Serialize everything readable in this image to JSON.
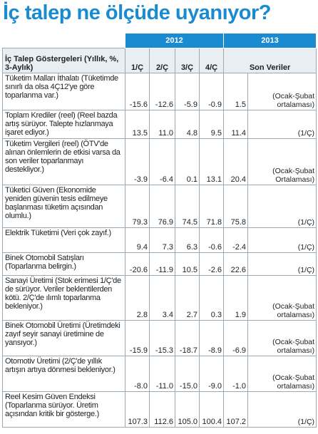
{
  "title": "İç talep ne ölçüde uyanıyor?",
  "table": {
    "years": [
      "2012",
      "2013"
    ],
    "header": [
      "İç Talep Göstergeleri (Yıllık, %, 3-Aylık)",
      "1/Ç",
      "2/Ç",
      "3/Ç",
      "4/Ç",
      "Son Veriler"
    ],
    "rows": [
      [
        "Tüketim Malları İthalatı (Tüketimde sınırlı da olsa 4Ç12'ye göre toparlanma var.)",
        "-15.6",
        "-12.6",
        "-5.9",
        "-0.9",
        "1.5",
        "(Ocak-Şubat ortalaması)"
      ],
      [
        "Toplam Krediler (reel) (Reel bazda artış sürüyor. Talepte hızlanmaya işaret ediyor.)",
        "13.5",
        "11.0",
        "4.8",
        "9.5",
        "11.4",
        "(1/Ç)"
      ],
      [
        "Tüketim Vergileri (reel) (ÖTV'de alınan önlemlerin de etkisi varsa da son veriler toparlanmayı destekliyor.)",
        "-3.9",
        "-6.4",
        "0.1",
        "13.1",
        "20.4",
        "(Ocak-Şubat Ortalaması)"
      ],
      [
        "Tüketici Güven (Ekonomide yeniden güvenin tesis edilmeye başlanması tüketim açısından olumlu.)",
        "79.3",
        "76.9",
        "74.5",
        "71.8",
        "75.8",
        "(1/Ç)"
      ],
      [
        "Elektrik Tüketimi (Veri çok zayıf.)",
        "9.4",
        "7.3",
        "6.3",
        "-0.6",
        "-2.4",
        "(1/Ç)"
      ],
      [
        "Binek Otomobil Satışları (Toparlanma belirgin.)",
        "-20.6",
        "-11.9",
        "10.5",
        "-2.6",
        "22.6",
        "(1/Ç)"
      ],
      [
        "Sanayi Üretimi (Stok erimesi 1/Ç'de de sürüyor. Veriler beklentilerden kötü. 2/Ç'de ılımlı toparlanma bekleniyor.)",
        "2.8",
        "3.4",
        "2.7",
        "0.3",
        "1.9",
        "(Ocak-Şubat ortalaması)"
      ],
      [
        "Binek Otomobil Üretimi (Üretimdeki zayıf seyir sanayi üretimine de yansıyor.)",
        "-15.9",
        "-15.3",
        "-18.7",
        "-8.9",
        "-6.9",
        "(Ocak-Şubat ortalaması)"
      ],
      [
        "Otomotiv Üretimi (2/Ç'de yıllık artışın artıya dönmesi bekleniyor.)",
        "-8.0",
        "-11.0",
        "-15.0",
        "-9.0",
        "-1.0",
        "(Ocak-Şubat ortalaması)"
      ],
      [
        "Reel Kesim Güven Endeksi (Toparlanma sürüyor. Üretim açısından kritik bir gösterge.)",
        "107.3",
        "112.6",
        "105.0",
        "100.4",
        "107.2",
        "(1/Ç)"
      ]
    ]
  }
}
